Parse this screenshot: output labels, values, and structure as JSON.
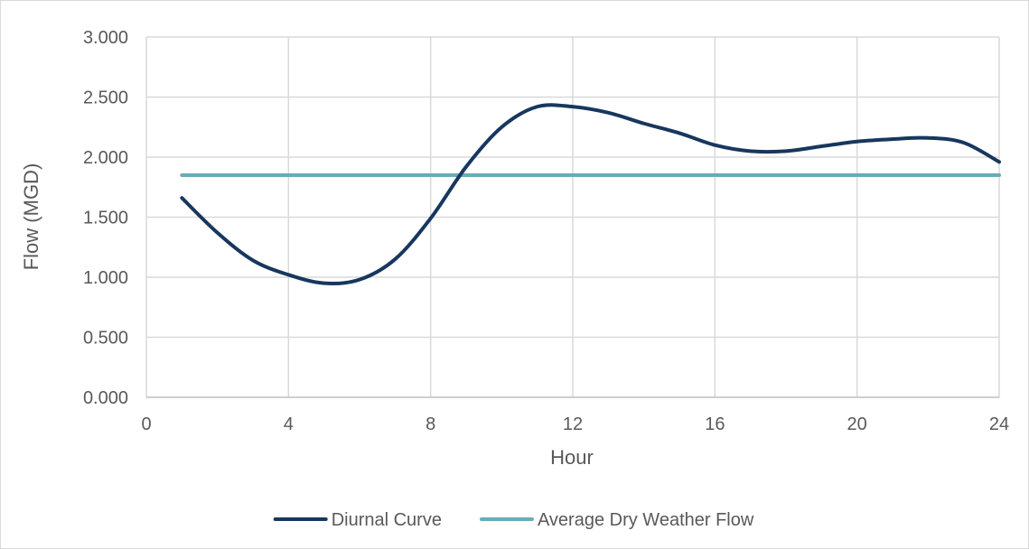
{
  "chart_data": {
    "type": "line",
    "xlabel": "Hour",
    "ylabel": "Flow (MGD)",
    "xlim": [
      0,
      24
    ],
    "ylim": [
      0,
      3
    ],
    "x_ticks": [
      0,
      4,
      8,
      12,
      16,
      20,
      24
    ],
    "x_tick_labels": [
      "0",
      "4",
      "8",
      "12",
      "16",
      "20",
      "24"
    ],
    "y_ticks": [
      0,
      0.5,
      1,
      1.5,
      2,
      2.5,
      3
    ],
    "y_tick_labels": [
      "0.000",
      "0.500",
      "1.000",
      "1.500",
      "2.000",
      "2.500",
      "3.000"
    ],
    "grid": true,
    "legend_position": "bottom",
    "series": [
      {
        "name": "Diurnal Curve",
        "color": "#17375e",
        "smooth": true,
        "x": [
          1,
          2,
          3,
          4,
          5,
          6,
          7,
          8,
          9,
          10,
          11,
          12,
          13,
          14,
          15,
          16,
          17,
          18,
          19,
          20,
          21,
          22,
          23,
          24
        ],
        "y": [
          1.66,
          1.37,
          1.14,
          1.02,
          0.95,
          0.98,
          1.15,
          1.49,
          1.92,
          2.25,
          2.42,
          2.42,
          2.37,
          2.28,
          2.2,
          2.1,
          2.05,
          2.05,
          2.09,
          2.13,
          2.15,
          2.16,
          2.12,
          1.96
        ]
      },
      {
        "name": "Average Dry Weather Flow",
        "color": "#6aabb9",
        "smooth": false,
        "x": [
          1,
          24
        ],
        "y": [
          1.85,
          1.85
        ]
      }
    ]
  }
}
